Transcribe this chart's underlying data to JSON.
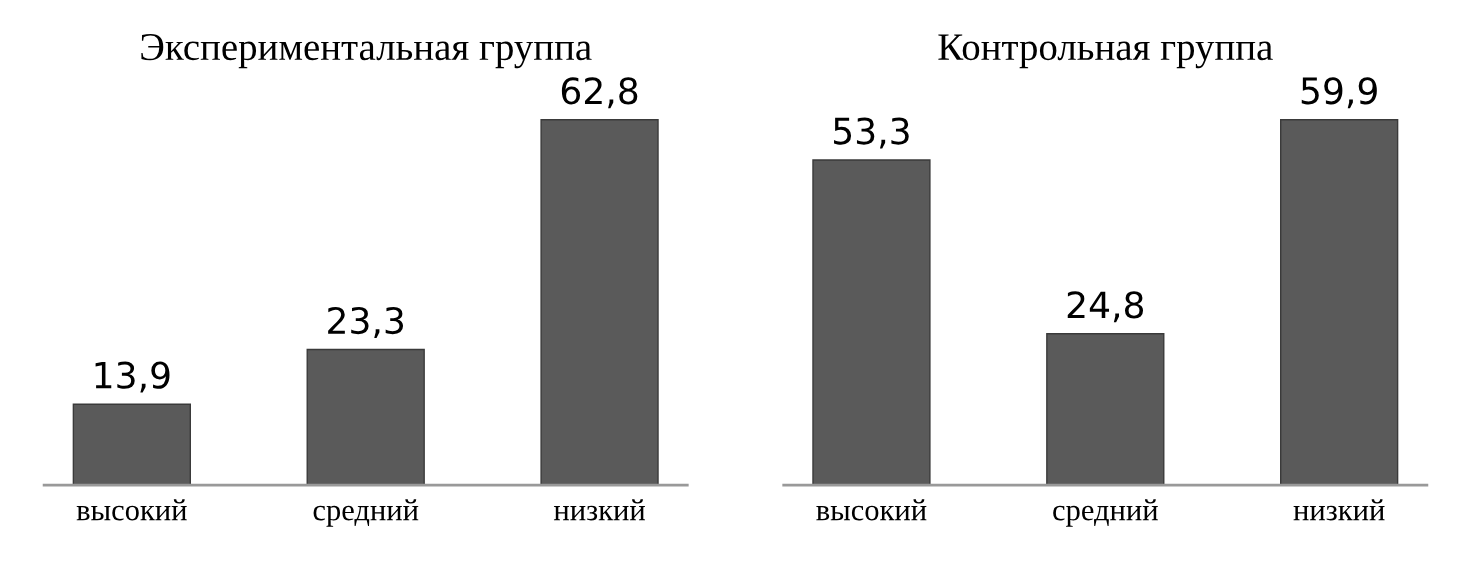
{
  "chart_data": [
    {
      "type": "bar",
      "title": "Экспериментальная группа",
      "categories": [
        "высокий",
        "средний",
        "низкий"
      ],
      "values": [
        13.9,
        23.3,
        62.8
      ],
      "value_labels": [
        "13,9",
        "23,3",
        "62,8"
      ],
      "color": "#5a5a5a",
      "tick_labels": "x"
    },
    {
      "type": "bar",
      "title": "Контрольная группа",
      "categories": [
        "высокий",
        "средний",
        "низкий"
      ],
      "values": [
        53.3,
        24.8,
        59.9
      ],
      "value_labels": [
        "53,3",
        "24,8",
        "59,9"
      ],
      "color": "#5a5a5a",
      "tick_labels": "x"
    }
  ]
}
